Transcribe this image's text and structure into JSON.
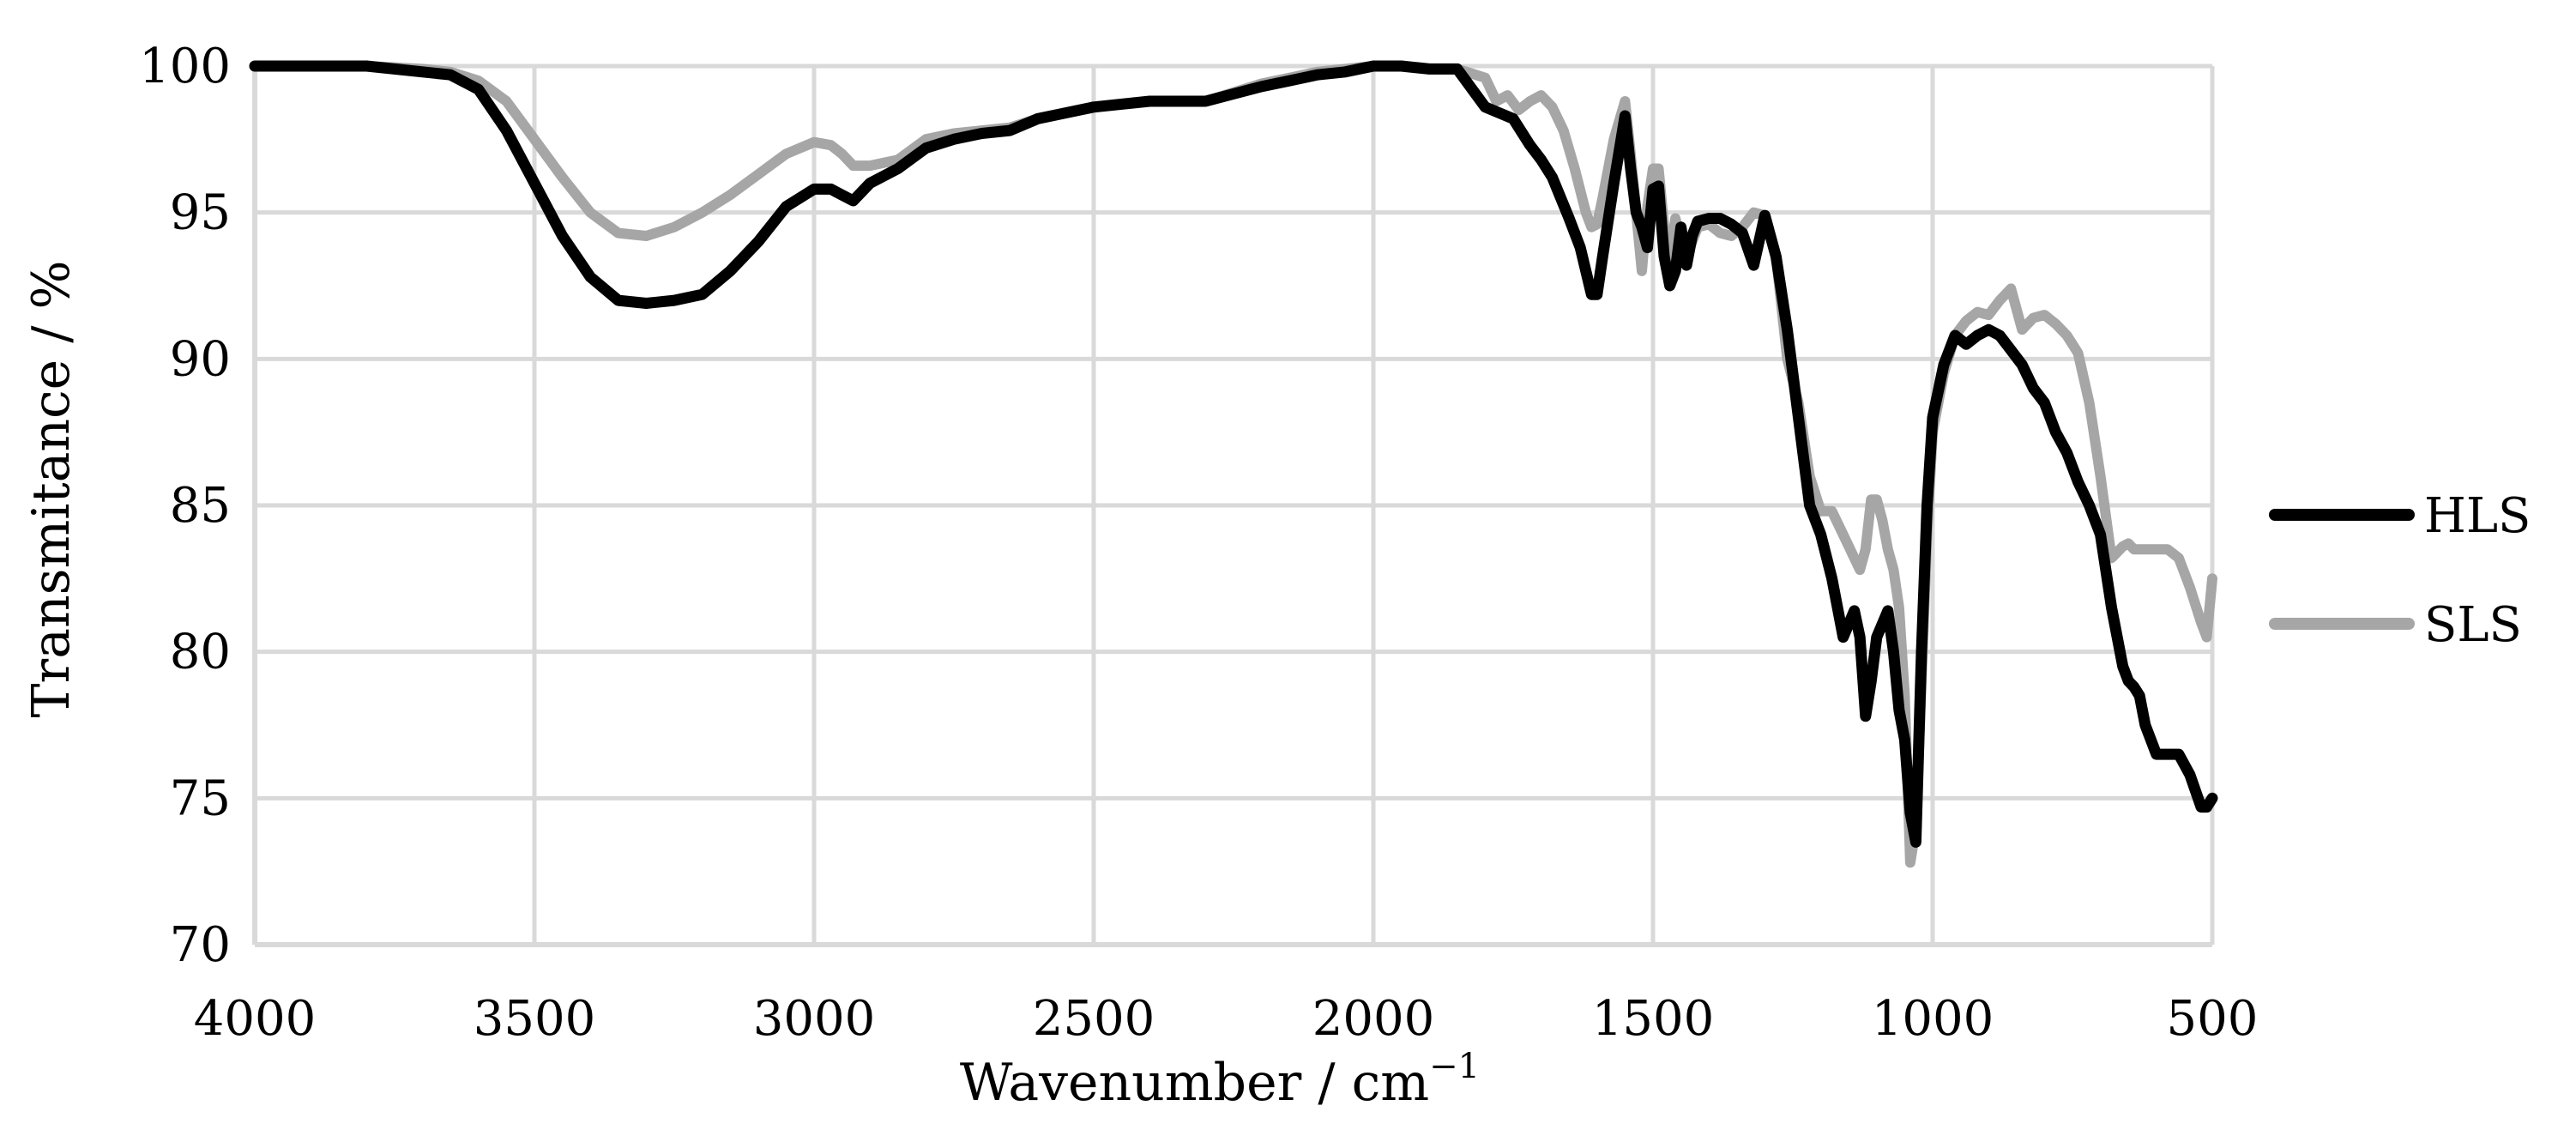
{
  "chart_data": {
    "type": "line",
    "xlabel": "Wavenumber / cm",
    "xlabel_sup": "−1",
    "ylabel": "Transmitance / %",
    "xlim": [
      4000,
      500
    ],
    "ylim": [
      70,
      100
    ],
    "x_reversed": true,
    "grid": true,
    "legend_position": "right",
    "x_ticks": [
      {
        "value": 4000,
        "label": "4000"
      },
      {
        "value": 3500,
        "label": "3500"
      },
      {
        "value": 3000,
        "label": "3000"
      },
      {
        "value": 2500,
        "label": "2500"
      },
      {
        "value": 2000,
        "label": "2000"
      },
      {
        "value": 1500,
        "label": "1500"
      },
      {
        "value": 1000,
        "label": "1000"
      },
      {
        "value": 500,
        "label": "500"
      }
    ],
    "y_ticks": [
      {
        "value": 70,
        "label": "70"
      },
      {
        "value": 75,
        "label": "75"
      },
      {
        "value": 80,
        "label": "80"
      },
      {
        "value": 85,
        "label": "85"
      },
      {
        "value": 90,
        "label": "90"
      },
      {
        "value": 95,
        "label": "95"
      },
      {
        "value": 100,
        "label": "100"
      }
    ],
    "series": [
      {
        "name": "HLS",
        "color": "#000000",
        "x": [
          4000,
          3900,
          3800,
          3700,
          3650,
          3600,
          3550,
          3500,
          3450,
          3400,
          3350,
          3300,
          3250,
          3200,
          3150,
          3100,
          3050,
          3000,
          2970,
          2950,
          2930,
          2900,
          2850,
          2800,
          2750,
          2700,
          2650,
          2600,
          2500,
          2400,
          2300,
          2200,
          2150,
          2100,
          2050,
          2000,
          1950,
          1900,
          1850,
          1800,
          1750,
          1720,
          1700,
          1680,
          1650,
          1630,
          1610,
          1600,
          1590,
          1570,
          1550,
          1540,
          1530,
          1520,
          1510,
          1500,
          1490,
          1480,
          1470,
          1460,
          1450,
          1440,
          1430,
          1420,
          1400,
          1380,
          1360,
          1340,
          1320,
          1300,
          1280,
          1260,
          1240,
          1220,
          1200,
          1180,
          1160,
          1140,
          1130,
          1120,
          1110,
          1100,
          1080,
          1070,
          1060,
          1050,
          1040,
          1030,
          1020,
          1010,
          1000,
          980,
          960,
          940,
          920,
          900,
          880,
          860,
          840,
          820,
          800,
          780,
          760,
          740,
          720,
          700,
          680,
          660,
          650,
          640,
          630,
          620,
          600,
          580,
          560,
          540,
          520,
          510,
          500
        ],
        "y": [
          100,
          100,
          100,
          99.8,
          99.7,
          99.2,
          97.8,
          96,
          94.2,
          92.8,
          92,
          91.9,
          92,
          92.2,
          93,
          94,
          95.2,
          95.8,
          95.8,
          95.6,
          95.4,
          96,
          96.5,
          97.2,
          97.5,
          97.7,
          97.8,
          98.2,
          98.6,
          98.8,
          98.8,
          99.3,
          99.5,
          99.7,
          99.8,
          100,
          100,
          99.9,
          99.9,
          98.6,
          98.2,
          97.3,
          96.8,
          96.2,
          94.8,
          93.8,
          92.2,
          92.2,
          93.5,
          96,
          98.3,
          96.5,
          95,
          94.5,
          93.8,
          95.8,
          95.9,
          93.5,
          92.5,
          93,
          94.5,
          93.2,
          94.2,
          94.7,
          94.8,
          94.8,
          94.6,
          94.3,
          93.2,
          94.9,
          93.5,
          91,
          88,
          85,
          84,
          82.5,
          80.5,
          81.4,
          80.5,
          77.8,
          79,
          80.5,
          81.4,
          80,
          78,
          77,
          74.5,
          73.5,
          80,
          85,
          88,
          89.8,
          90.8,
          90.5,
          90.8,
          91,
          90.8,
          90.3,
          89.8,
          89,
          88.5,
          87.5,
          86.8,
          85.8,
          85,
          84,
          81.5,
          79.5,
          79,
          78.8,
          78.5,
          77.5,
          76.5,
          76.5,
          76.5,
          75.8,
          74.7,
          74.7,
          75
        ]
      },
      {
        "name": "SLS",
        "color": "#a6a6a6",
        "x": [
          4000,
          3900,
          3800,
          3700,
          3650,
          3600,
          3550,
          3500,
          3450,
          3400,
          3350,
          3300,
          3250,
          3200,
          3150,
          3100,
          3050,
          3000,
          2970,
          2950,
          2930,
          2900,
          2850,
          2800,
          2750,
          2700,
          2650,
          2600,
          2500,
          2400,
          2300,
          2200,
          2150,
          2100,
          2050,
          2000,
          1950,
          1900,
          1850,
          1800,
          1780,
          1760,
          1740,
          1720,
          1700,
          1680,
          1660,
          1640,
          1620,
          1610,
          1600,
          1590,
          1570,
          1550,
          1540,
          1530,
          1520,
          1510,
          1500,
          1490,
          1480,
          1470,
          1460,
          1450,
          1440,
          1430,
          1420,
          1400,
          1380,
          1360,
          1340,
          1320,
          1300,
          1280,
          1260,
          1240,
          1220,
          1200,
          1180,
          1160,
          1140,
          1130,
          1120,
          1110,
          1100,
          1090,
          1080,
          1070,
          1060,
          1050,
          1040,
          1030,
          1020,
          1010,
          1000,
          980,
          960,
          940,
          920,
          900,
          880,
          860,
          840,
          820,
          800,
          780,
          760,
          740,
          720,
          700,
          680,
          660,
          650,
          640,
          630,
          620,
          600,
          580,
          560,
          540,
          520,
          510,
          500
        ],
        "y": [
          100,
          100,
          100,
          99.9,
          99.8,
          99.5,
          98.8,
          97.5,
          96.2,
          95,
          94.3,
          94.2,
          94.5,
          95,
          95.6,
          96.3,
          97,
          97.4,
          97.3,
          97,
          96.6,
          96.6,
          96.8,
          97.5,
          97.7,
          97.8,
          97.9,
          98.2,
          98.6,
          98.8,
          98.8,
          99.4,
          99.6,
          99.8,
          99.9,
          100,
          100,
          99.9,
          99.9,
          99.6,
          98.8,
          99,
          98.5,
          98.8,
          99,
          98.6,
          97.8,
          96.5,
          95,
          94.5,
          94.6,
          95.5,
          97.5,
          98.8,
          97,
          95,
          93,
          95.2,
          96.5,
          96.5,
          94.5,
          93.5,
          94.8,
          94,
          93.5,
          94,
          94.5,
          94.6,
          94.3,
          94.2,
          94.5,
          95,
          94.9,
          93.5,
          90,
          88.5,
          86,
          84.8,
          84.8,
          84,
          83.2,
          82.8,
          83.5,
          85.2,
          85.2,
          84.5,
          83.5,
          82.8,
          81.5,
          78.5,
          72.8,
          74,
          79,
          84,
          87.5,
          89.5,
          90.8,
          91.3,
          91.6,
          91.5,
          92,
          92.4,
          91,
          91.4,
          91.5,
          91.2,
          90.8,
          90.2,
          88.5,
          86,
          83.2,
          83.6,
          83.7,
          83.5,
          83.5,
          83.5,
          83.5,
          83.5,
          83.2,
          82.2,
          81,
          80.5,
          82.5
        ]
      }
    ]
  }
}
